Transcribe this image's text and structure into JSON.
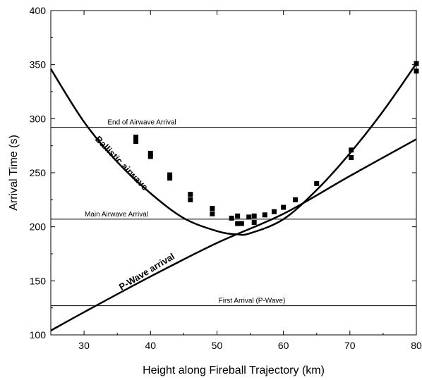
{
  "chart_data": {
    "type": "scatter",
    "title": "",
    "xlabel": "Height along Fireball Trajectory (km)",
    "ylabel": "Arrival Time (s)",
    "xlim": [
      25,
      80
    ],
    "ylim": [
      100,
      400
    ],
    "xticks": [
      30,
      40,
      50,
      60,
      70,
      80
    ],
    "yticks": [
      100,
      150,
      200,
      250,
      300,
      350,
      400
    ],
    "grid": false,
    "points": [
      {
        "x": 37.8,
        "y": 283
      },
      {
        "x": 37.8,
        "y": 279
      },
      {
        "x": 40.0,
        "y": 268
      },
      {
        "x": 40.0,
        "y": 265
      },
      {
        "x": 42.9,
        "y": 248
      },
      {
        "x": 42.9,
        "y": 245
      },
      {
        "x": 46.0,
        "y": 230
      },
      {
        "x": 46.0,
        "y": 225
      },
      {
        "x": 49.3,
        "y": 217
      },
      {
        "x": 49.3,
        "y": 212
      },
      {
        "x": 52.2,
        "y": 208
      },
      {
        "x": 53.1,
        "y": 210
      },
      {
        "x": 53.1,
        "y": 203
      },
      {
        "x": 53.7,
        "y": 203
      },
      {
        "x": 54.8,
        "y": 209
      },
      {
        "x": 55.6,
        "y": 210
      },
      {
        "x": 55.6,
        "y": 204
      },
      {
        "x": 57.2,
        "y": 211
      },
      {
        "x": 58.6,
        "y": 214
      },
      {
        "x": 60.0,
        "y": 218
      },
      {
        "x": 61.8,
        "y": 225
      },
      {
        "x": 65.0,
        "y": 240
      },
      {
        "x": 70.2,
        "y": 271
      },
      {
        "x": 70.2,
        "y": 264
      },
      {
        "x": 80.0,
        "y": 351
      },
      {
        "x": 80.0,
        "y": 344
      }
    ],
    "curves": [
      {
        "name": "Ballistic airwave",
        "x": [
          25,
          30,
          35,
          40,
          45,
          50,
          53,
          55,
          60,
          65,
          70,
          75,
          80
        ],
        "y": [
          346,
          297,
          260,
          231,
          208,
          196,
          193,
          194,
          207,
          234,
          268,
          307,
          351
        ]
      },
      {
        "name": "P-Wave arrival",
        "x": [
          25,
          30,
          40,
          50,
          60,
          70,
          80
        ],
        "y": [
          104,
          121,
          154,
          185,
          212,
          247,
          281
        ]
      }
    ],
    "reference_lines": [
      {
        "label": "End of Airwave Arrival",
        "y": 292
      },
      {
        "label": "Main Airwave Arrival",
        "y": 207
      },
      {
        "label": "First Arrival (P-Wave)",
        "y": 127
      }
    ]
  }
}
